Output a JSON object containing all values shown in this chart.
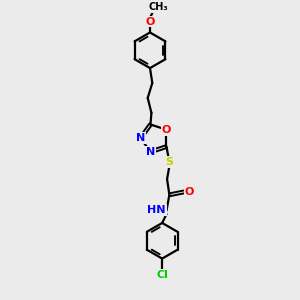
{
  "bg_color": "#ebebeb",
  "line_color": "#000000",
  "bond_lw": 1.6,
  "atom_colors": {
    "O": "#ff0000",
    "N": "#0000ff",
    "S": "#cccc00",
    "Cl": "#00cc00",
    "C": "#000000",
    "H": "#555555"
  },
  "font_size": 8.0,
  "figsize": [
    3.0,
    3.0
  ],
  "dpi": 100
}
